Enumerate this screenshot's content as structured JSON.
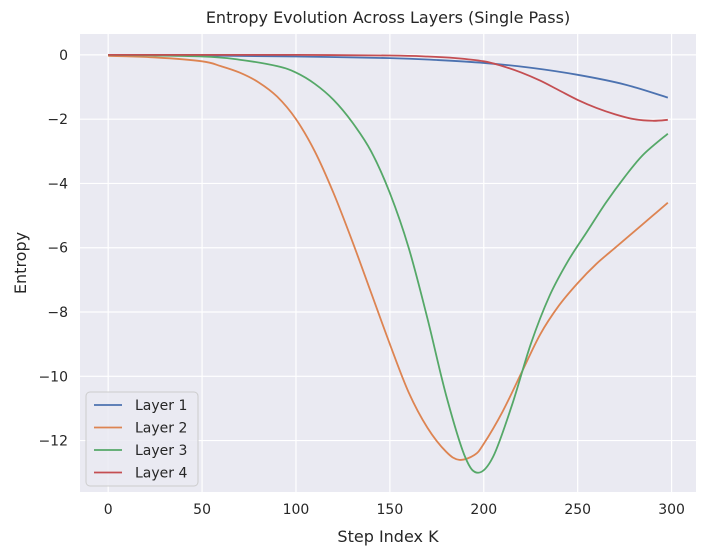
{
  "chart_data": {
    "type": "line",
    "title": "Entropy Evolution Across Layers (Single Pass)",
    "xlabel": "Step Index K",
    "ylabel": "Entropy",
    "xlim": [
      -15,
      313
    ],
    "ylim": [
      -13.6,
      0.65
    ],
    "xticks": [
      0,
      50,
      100,
      150,
      200,
      250,
      300
    ],
    "yticks": [
      0,
      -2,
      -4,
      -6,
      -8,
      -10,
      -12
    ],
    "grid": true,
    "legend_position": "lower-left",
    "background": "#eaeaf2",
    "series": [
      {
        "name": "Layer 1",
        "color": "#4c72b0",
        "x": [
          0,
          50,
          100,
          150,
          175,
          200,
          225,
          250,
          275,
          298
        ],
        "y": [
          0,
          -0.02,
          -0.05,
          -0.1,
          -0.16,
          -0.25,
          -0.4,
          -0.62,
          -0.92,
          -1.33
        ]
      },
      {
        "name": "Layer 2",
        "color": "#dd8452",
        "x": [
          0,
          25,
          50,
          60,
          70,
          80,
          90,
          100,
          110,
          120,
          130,
          140,
          150,
          160,
          170,
          180,
          187,
          195,
          200,
          210,
          220,
          230,
          240,
          250,
          260,
          270,
          280,
          290,
          298
        ],
        "y": [
          -0.03,
          -0.08,
          -0.2,
          -0.35,
          -0.55,
          -0.85,
          -1.3,
          -2.0,
          -3.0,
          -4.3,
          -5.8,
          -7.4,
          -9.0,
          -10.5,
          -11.6,
          -12.35,
          -12.6,
          -12.45,
          -12.1,
          -11.1,
          -9.9,
          -8.7,
          -7.8,
          -7.1,
          -6.5,
          -6.0,
          -5.5,
          -5.0,
          -4.6
        ]
      },
      {
        "name": "Layer 3",
        "color": "#55a868",
        "x": [
          0,
          50,
          70,
          90,
          100,
          110,
          120,
          130,
          140,
          150,
          160,
          170,
          180,
          190,
          197,
          205,
          215,
          225,
          235,
          245,
          255,
          265,
          275,
          285,
          298
        ],
        "y": [
          0,
          -0.05,
          -0.15,
          -0.35,
          -0.55,
          -0.9,
          -1.4,
          -2.1,
          -3.0,
          -4.3,
          -6.0,
          -8.2,
          -10.6,
          -12.5,
          -13.0,
          -12.5,
          -10.9,
          -9.0,
          -7.5,
          -6.4,
          -5.5,
          -4.6,
          -3.8,
          -3.1,
          -2.45
        ]
      },
      {
        "name": "Layer 4",
        "color": "#c44e52",
        "x": [
          0,
          50,
          100,
          150,
          170,
          185,
          200,
          210,
          220,
          230,
          240,
          250,
          260,
          270,
          280,
          290,
          298
        ],
        "y": [
          0,
          0,
          0,
          -0.02,
          -0.05,
          -0.1,
          -0.2,
          -0.35,
          -0.55,
          -0.8,
          -1.1,
          -1.4,
          -1.65,
          -1.85,
          -2.0,
          -2.05,
          -2.02
        ]
      }
    ]
  }
}
